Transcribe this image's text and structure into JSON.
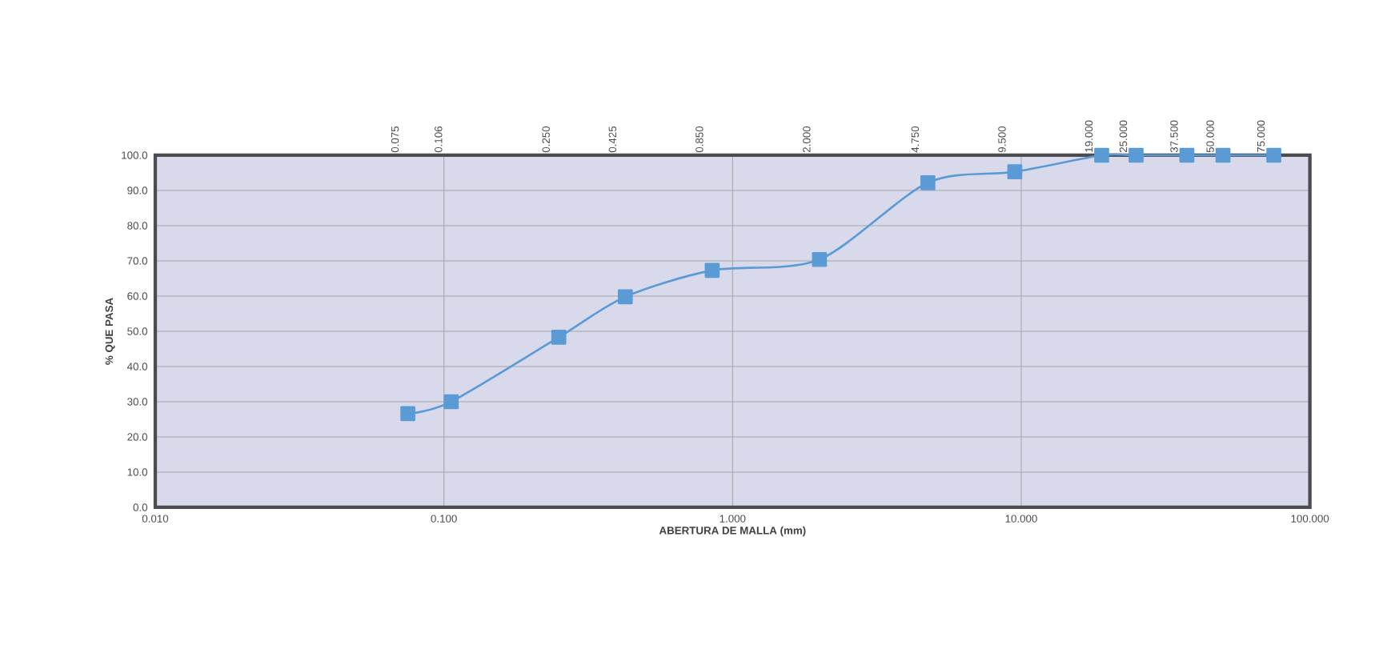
{
  "chart_data": {
    "type": "line",
    "xlabel": "ABERTURA DE MALLA (mm)",
    "ylabel": "% QUE PASA",
    "log": "x",
    "grid": true,
    "marker": "square",
    "line_style": "solid",
    "xlim": [
      0.01,
      100
    ],
    "ylim": [
      0,
      100
    ],
    "xticks": [
      {
        "value": 0.01,
        "label": "0.010"
      },
      {
        "value": 0.1,
        "label": "0.100"
      },
      {
        "value": 1,
        "label": "1.000"
      },
      {
        "value": 10,
        "label": "10.000"
      },
      {
        "value": 100,
        "label": "100.000"
      }
    ],
    "yticks": [
      {
        "value": 0,
        "label": "0.0"
      },
      {
        "value": 10,
        "label": "10.0"
      },
      {
        "value": 20,
        "label": "20.0"
      },
      {
        "value": 30,
        "label": "30.0"
      },
      {
        "value": 40,
        "label": "40.0"
      },
      {
        "value": 50,
        "label": "50.0"
      },
      {
        "value": 60,
        "label": "60.0"
      },
      {
        "value": 70,
        "label": "70.0"
      },
      {
        "value": 80,
        "label": "80.0"
      },
      {
        "value": 90,
        "label": "90.0"
      },
      {
        "value": 100,
        "label": "100.0"
      }
    ],
    "annotations": [
      "0.075",
      "0.106",
      "0.250",
      "0.425",
      "0.850",
      "2.000",
      "4.750",
      "9.500",
      "19.000",
      "25.000",
      "37.500",
      "50.000",
      "75.000"
    ],
    "series": [
      {
        "color": "#5b9bd5",
        "x": [
          0.075,
          0.106,
          0.25,
          0.425,
          0.85,
          2,
          4.75,
          9.5,
          19,
          25,
          37.5,
          50,
          75
        ],
        "values": [
          26.6,
          30.0,
          48.3,
          59.8,
          67.3,
          70.4,
          92.2,
          95.3,
          100,
          100,
          100,
          100,
          100
        ]
      }
    ]
  }
}
